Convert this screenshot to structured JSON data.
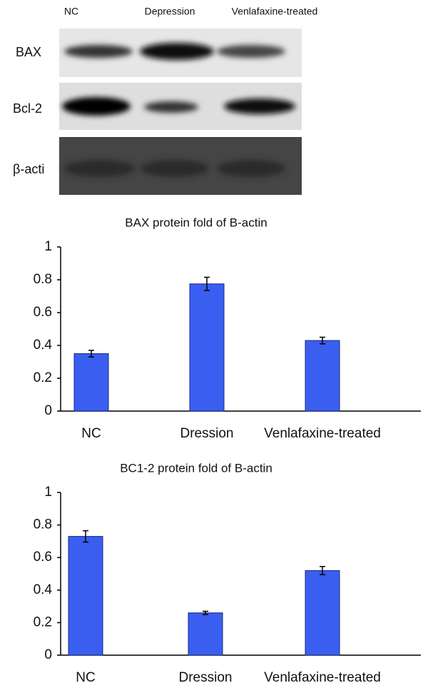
{
  "blot": {
    "lanes": [
      "NC",
      "Depression",
      "Venlafaxine-treated"
    ],
    "rows": [
      "BAX",
      "Bcl-2",
      "β-acti"
    ]
  },
  "chart_data": [
    {
      "type": "bar",
      "title": "BAX protein fold of B-actin",
      "categories": [
        "NC",
        "Dression",
        "Venlafaxine-treated"
      ],
      "values": [
        0.35,
        0.775,
        0.43
      ],
      "errors": [
        0.02,
        0.04,
        0.02
      ],
      "color": "#3a5ef0",
      "ylim": [
        0,
        1
      ],
      "yticks": [
        0,
        0.2,
        0.4,
        0.6,
        0.8,
        1
      ]
    },
    {
      "type": "bar",
      "title": "BC1-2 protein fold of B-actin",
      "categories": [
        "NC",
        "Dression",
        "Venlafaxine-treated"
      ],
      "values": [
        0.73,
        0.26,
        0.52
      ],
      "errors": [
        0.035,
        0.01,
        0.025
      ],
      "color": "#3a5ef0",
      "ylim": [
        0,
        1
      ],
      "yticks": [
        0,
        0.2,
        0.4,
        0.6,
        0.8,
        1
      ]
    }
  ]
}
